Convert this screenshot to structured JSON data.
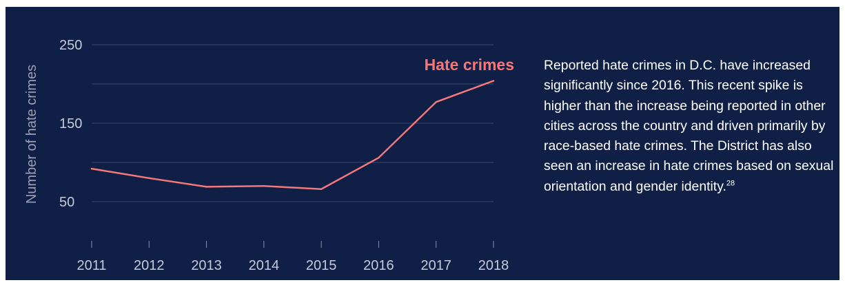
{
  "chart_data": {
    "type": "line",
    "x": [
      "2011",
      "2012",
      "2013",
      "2014",
      "2015",
      "2016",
      "2017",
      "2018"
    ],
    "series": [
      {
        "name": "Hate crimes",
        "values": [
          92,
          80,
          69,
          70,
          66,
          106,
          177,
          204
        ],
        "color": "#f4777a"
      }
    ],
    "ylabel": "Number of hate crimes",
    "xlabel": "",
    "ylim": [
      0,
      250
    ],
    "yticks": [
      "250",
      "150",
      "50"
    ],
    "ytick_values": [
      250,
      150,
      50
    ],
    "gridline_values": [
      250,
      200,
      150,
      100,
      50
    ],
    "grid": true,
    "background": "#0f1f45",
    "grid_color": "#3b4a70"
  },
  "description": {
    "text": "Reported hate crimes in D.C. have increased significantly since 2016. This recent spike is higher than the increase being reported in other cities across the country and driven primarily by race-based hate crimes. The District has also seen an increase in hate crimes based on sexual orientation and gender identity.",
    "footnote": "28"
  }
}
